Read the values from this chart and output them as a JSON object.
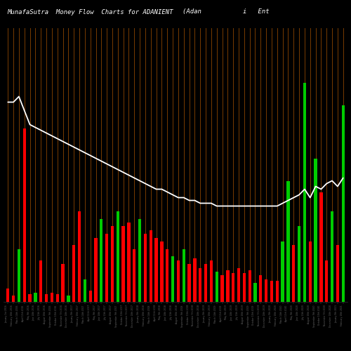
{
  "title": "MunafaSutra  Money Flow  Charts for ADANIENT",
  "title_right": "(Adan           i   Ent",
  "background_color": "#000000",
  "bar_colors": [
    "red",
    "red",
    "green",
    "red",
    "red",
    "green",
    "red",
    "red",
    "red",
    "red",
    "red",
    "green",
    "red",
    "red",
    "green",
    "red",
    "red",
    "green",
    "red",
    "red",
    "green",
    "red",
    "red",
    "red",
    "green",
    "red",
    "red",
    "red",
    "red",
    "red",
    "green",
    "red",
    "green",
    "red",
    "red",
    "red",
    "red",
    "red",
    "green",
    "red",
    "red",
    "red",
    "red",
    "red",
    "red",
    "green",
    "red",
    "red",
    "red",
    "red",
    "green",
    "green",
    "red",
    "green",
    "green",
    "red",
    "green",
    "red",
    "red",
    "green",
    "red",
    "green"
  ],
  "bar_heights": [
    18,
    8,
    70,
    230,
    10,
    12,
    55,
    10,
    12,
    10,
    50,
    8,
    75,
    120,
    30,
    15,
    85,
    110,
    90,
    100,
    120,
    100,
    105,
    70,
    110,
    90,
    95,
    85,
    80,
    70,
    60,
    55,
    70,
    50,
    58,
    45,
    50,
    55,
    40,
    35,
    42,
    38,
    45,
    38,
    42,
    25,
    35,
    30,
    28,
    28,
    80,
    160,
    75,
    100,
    290,
    80,
    190,
    145,
    55,
    120,
    75,
    260
  ],
  "line_values": [
    0.72,
    0.72,
    0.74,
    0.69,
    0.64,
    0.63,
    0.62,
    0.61,
    0.6,
    0.59,
    0.58,
    0.57,
    0.56,
    0.55,
    0.54,
    0.53,
    0.52,
    0.51,
    0.5,
    0.49,
    0.48,
    0.47,
    0.46,
    0.45,
    0.44,
    0.43,
    0.42,
    0.41,
    0.41,
    0.4,
    0.39,
    0.38,
    0.38,
    0.37,
    0.37,
    0.36,
    0.36,
    0.36,
    0.35,
    0.35,
    0.35,
    0.35,
    0.35,
    0.35,
    0.35,
    0.35,
    0.35,
    0.35,
    0.35,
    0.35,
    0.36,
    0.37,
    0.38,
    0.39,
    0.41,
    0.38,
    0.42,
    0.41,
    0.43,
    0.44,
    0.42,
    0.45
  ],
  "x_labels": [
    "January 1st 2016",
    "February 10th 2016",
    "March 14th 2016",
    "April 11th 2016",
    "May 9th 2016",
    "June 14th 2016",
    "July 11th 2016",
    "August 10th 2016",
    "September 9th 2016",
    "October 10th 2016",
    "November 7th 2016",
    "December 14th 2016",
    "January 9th 2017",
    "February 10th 2017",
    "March 14th 2017",
    "April 11th 2017",
    "May 9th 2017",
    "June 14th 2017",
    "July 11th 2017",
    "August 10th 2017",
    "September 9th 2017",
    "October 10th 2017",
    "November 7th 2017",
    "December 14th 2017",
    "January 9th 2018",
    "February 10th 2018",
    "March 14th 2018",
    "April 11th 2018",
    "May 9th 2018",
    "June 14th 2018",
    "July 11th 2018",
    "August 10th 2018",
    "September 9th 2018",
    "October 10th 2018",
    "November 7th 2018",
    "December 14th 2018",
    "January 9th 2019",
    "February 10th 2019",
    "March 14th 2019",
    "April 11th 2019",
    "May 9th 2019",
    "June 14th 2019",
    "July 11th 2019",
    "August 10th 2019",
    "September 9th 2019",
    "October 10th 2019",
    "November 7th 2019",
    "December 14th 2019",
    "January 9th 2020",
    "February 10th 2020",
    "March 14th 2020",
    "April 11th 2020",
    "May 9th 2020",
    "June 14th 2020",
    "July 11th 2020",
    "August 10th 2020",
    "September 9th 2020",
    "October 10th 2020",
    "November 7th 2020",
    "December 14th 2020",
    "January 9th 2021",
    "February 10th 2021"
  ],
  "grid_color": "#8B4500",
  "line_color": "#ffffff",
  "title_color": "#ffffff",
  "title_fontsize": 6.5,
  "bar_width": 0.55
}
